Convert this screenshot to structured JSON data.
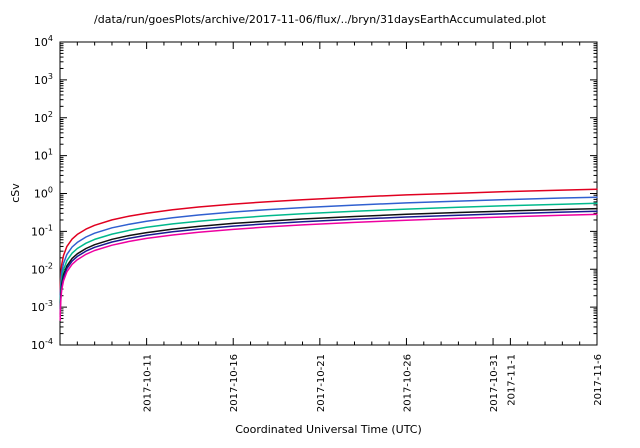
{
  "title": "/data/run/goesPlots/archive/2017-11-06/flux/../bryn/31daysEarthAccumulated.plot",
  "chart_data": {
    "type": "line",
    "title": "/data/run/goesPlots/archive/2017-11-06/flux/../bryn/31daysEarthAccumulated.plot",
    "xlabel": "Coordinated Universal Time (UTC)",
    "ylabel": "cSv",
    "y_scale": "log",
    "ylim": [
      0.0001,
      10000
    ],
    "y_tick_exponents": [
      4,
      3,
      2,
      1,
      0,
      -1,
      -2,
      -3,
      -4
    ],
    "grid": false,
    "legend": "none",
    "x_axis_start_date": "2017-10-06",
    "x_span_days": 31,
    "x_tick_labels": [
      {
        "day": 5,
        "label": "2017-10-11"
      },
      {
        "day": 10,
        "label": "2017-10-16"
      },
      {
        "day": 15,
        "label": "2017-10-21"
      },
      {
        "day": 20,
        "label": "2017-10-26"
      },
      {
        "day": 25,
        "label": "2017-10-31"
      },
      {
        "day": 26,
        "label": "2017-11-1"
      },
      {
        "day": 31,
        "label": "2017-11-6"
      }
    ],
    "x_days": [
      0.01,
      0.02,
      0.05,
      0.1,
      0.2,
      0.4,
      0.7,
      1,
      1.5,
      2,
      3,
      4,
      5,
      6.5,
      8,
      10,
      12,
      14,
      17,
      20,
      23,
      26,
      29,
      31
    ],
    "series": [
      {
        "name": "red",
        "color": "#e00020",
        "values": [
          0.00209,
          0.00364,
          0.00758,
          0.0132,
          0.023,
          0.04,
          0.0627,
          0.0833,
          0.115,
          0.145,
          0.201,
          0.253,
          0.302,
          0.373,
          0.44,
          0.526,
          0.609,
          0.688,
          0.804,
          0.916,
          1.02,
          1.13,
          1.23,
          1.3
        ]
      },
      {
        "name": "blue",
        "color": "#3060d0",
        "values": [
          0.00129,
          0.00224,
          0.00466,
          0.00814,
          0.0142,
          0.0246,
          0.0386,
          0.0513,
          0.0709,
          0.0893,
          0.124,
          0.155,
          0.186,
          0.229,
          0.271,
          0.324,
          0.375,
          0.424,
          0.494,
          0.564,
          0.63,
          0.695,
          0.759,
          0.8
        ]
      },
      {
        "name": "teal",
        "color": "#00b98c",
        "values": [
          0.00089,
          0.00154,
          0.00321,
          0.00559,
          0.00974,
          0.0169,
          0.0265,
          0.0353,
          0.0487,
          0.0614,
          0.0849,
          0.107,
          0.128,
          0.158,
          0.186,
          0.223,
          0.257,
          0.291,
          0.34,
          0.388,
          0.433,
          0.478,
          0.522,
          0.55
        ]
      },
      {
        "name": "black",
        "color": "#101010",
        "values": [
          0.00064,
          0.00112,
          0.00233,
          0.00407,
          0.00708,
          0.0123,
          0.0193,
          0.0256,
          0.0354,
          0.0446,
          0.0618,
          0.0777,
          0.093,
          0.115,
          0.135,
          0.162,
          0.187,
          0.212,
          0.247,
          0.282,
          0.315,
          0.347,
          0.379,
          0.4
        ]
      },
      {
        "name": "navy",
        "color": "#1a1a90",
        "values": [
          0.00055,
          0.00095,
          0.00198,
          0.00346,
          0.00602,
          0.0105,
          0.0164,
          0.0218,
          0.0301,
          0.0379,
          0.0525,
          0.0661,
          0.079,
          0.0974,
          0.115,
          0.138,
          0.159,
          0.18,
          0.21,
          0.24,
          0.268,
          0.295,
          0.322,
          0.34
        ]
      },
      {
        "name": "magenta",
        "color": "#ee00a0",
        "values": [
          0.00045,
          0.00078,
          0.00163,
          0.00285,
          0.00496,
          0.00862,
          0.0135,
          0.0179,
          0.0248,
          0.0312,
          0.0432,
          0.0544,
          0.0651,
          0.0802,
          0.0948,
          0.113,
          0.131,
          0.148,
          0.173,
          0.197,
          0.22,
          0.243,
          0.266,
          0.28
        ]
      }
    ]
  }
}
